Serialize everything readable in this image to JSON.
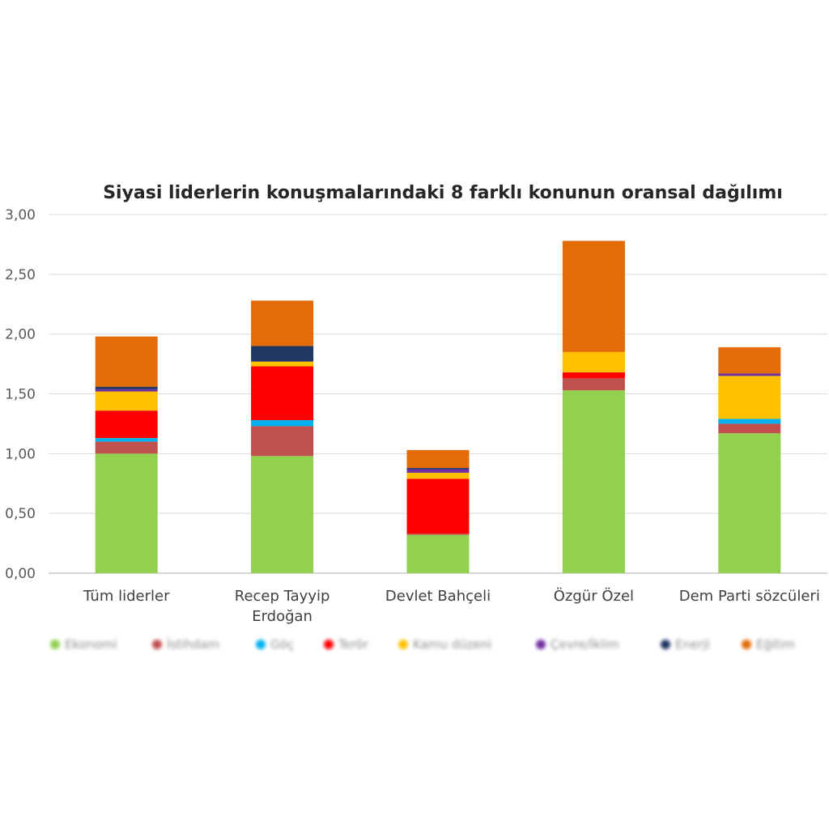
{
  "chart_data": {
    "type": "bar",
    "stacked": true,
    "title": "Siyasi liderlerin konuşmalarındaki 8 farklı konunun oransal dağılımı",
    "categories": [
      [
        "Tüm liderler"
      ],
      [
        "Recep Tayyip",
        "Erdoğan"
      ],
      [
        "Devlet Bahçeli"
      ],
      [
        "Özgür Özel"
      ],
      [
        "Dem Parti sözcüleri"
      ]
    ],
    "ylim": [
      0,
      3.0
    ],
    "yticks": [
      "0,00",
      "0,50",
      "1,00",
      "1,50",
      "2,00",
      "2,50",
      "3,00"
    ],
    "ytick_values": [
      0,
      0.5,
      1.0,
      1.5,
      2.0,
      2.5,
      3.0
    ],
    "grid": true,
    "legend_position": "bottom",
    "series": [
      {
        "name": "Ekonomi",
        "color": "#92d050",
        "values": [
          1.0,
          0.98,
          0.32,
          1.53,
          1.17
        ]
      },
      {
        "name": "İstihdam",
        "color": "#c0504d",
        "values": [
          0.1,
          0.25,
          0.01,
          0.1,
          0.08
        ]
      },
      {
        "name": "Göç",
        "color": "#00b0f0",
        "values": [
          0.03,
          0.05,
          0.0,
          0.0,
          0.04
        ]
      },
      {
        "name": "Terör",
        "color": "#ff0000",
        "values": [
          0.23,
          0.45,
          0.46,
          0.05,
          0.0
        ]
      },
      {
        "name": "Kamu düzeni",
        "color": "#ffc000",
        "values": [
          0.16,
          0.04,
          0.05,
          0.17,
          0.36
        ]
      },
      {
        "name": "Çevre/İklim",
        "color": "#7030a0",
        "values": [
          0.02,
          0.0,
          0.03,
          0.0,
          0.02
        ]
      },
      {
        "name": "Enerji",
        "color": "#203864",
        "values": [
          0.02,
          0.13,
          0.01,
          0.0,
          0.0
        ]
      },
      {
        "name": "Eğitim",
        "color": "#e36c09",
        "values": [
          0.42,
          0.38,
          0.15,
          0.93,
          0.22
        ]
      }
    ]
  }
}
